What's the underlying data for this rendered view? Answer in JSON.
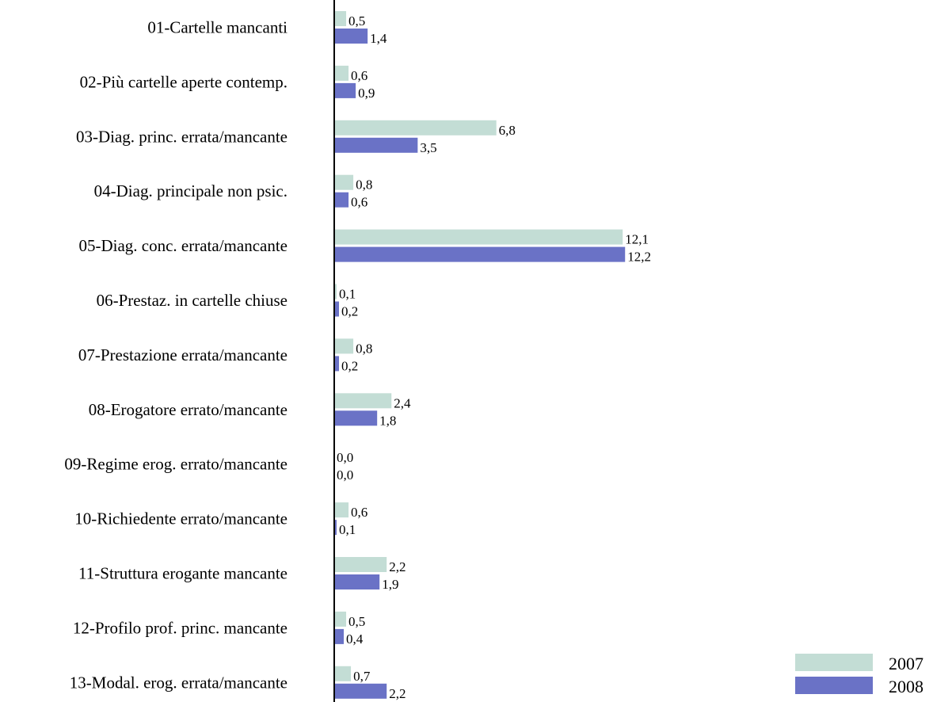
{
  "chart_data": {
    "type": "bar",
    "orientation": "horizontal",
    "categories": [
      "01-Cartelle mancanti",
      "02-Più cartelle aperte contemp.",
      "03-Diag. princ. errata/mancante",
      "04-Diag. principale non psic.",
      "05-Diag. conc. errata/mancante",
      "06-Prestaz. in cartelle chiuse",
      "07-Prestazione errata/mancante",
      "08-Erogatore errato/mancante",
      "09-Regime erog. errato/mancante",
      "10-Richiedente errato/mancante",
      "11-Struttura erogante mancante",
      "12-Profilo prof. princ. mancante",
      "13-Modal. erog. errata/mancante"
    ],
    "series": [
      {
        "name": "2007",
        "color": "#c3ddd5",
        "values": [
          0.5,
          0.6,
          6.8,
          0.8,
          12.1,
          0.1,
          0.8,
          2.4,
          0.0,
          0.6,
          2.2,
          0.5,
          0.7
        ],
        "labels": [
          "0,5",
          "0,6",
          "6,8",
          "0,8",
          "12,1",
          "0,1",
          "0,8",
          "2,4",
          "0,0",
          "0,6",
          "2,2",
          "0,5",
          "0,7"
        ]
      },
      {
        "name": "2008",
        "color": "#6a72c6",
        "values": [
          1.4,
          0.9,
          3.5,
          0.6,
          12.2,
          0.2,
          0.2,
          1.8,
          0.0,
          0.1,
          1.9,
          0.4,
          2.2
        ],
        "labels": [
          "1,4",
          "0,9",
          "3,5",
          "0,6",
          "12,2",
          "0,2",
          "0,2",
          "1,8",
          "0,0",
          "0,1",
          "1,9",
          "0,4",
          "2,2"
        ]
      }
    ],
    "xlim": [
      0,
      12.5
    ],
    "grid": false,
    "legend_position": "bottom-right"
  }
}
